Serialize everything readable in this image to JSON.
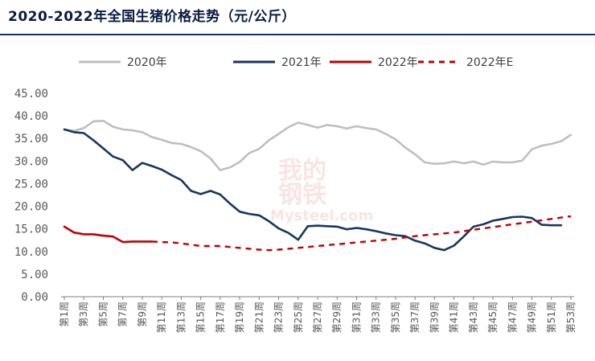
{
  "title": "2020-2022年全国生猪价格走势（元/公斤）",
  "watermark": {
    "top": "我的",
    "middle": "钢铁",
    "bottom": "Mysteel.com"
  },
  "chart_data": {
    "type": "line",
    "title": "2020-2022年全国生猪价格走势（元/公斤）",
    "xlabel": "",
    "ylabel": "",
    "ylim": [
      0,
      45
    ],
    "yticks": [
      "0.00",
      "5.00",
      "10.00",
      "15.00",
      "20.00",
      "25.00",
      "30.00",
      "35.00",
      "40.00",
      "45.00"
    ],
    "x": [
      1,
      2,
      3,
      4,
      5,
      6,
      7,
      8,
      9,
      10,
      11,
      12,
      13,
      14,
      15,
      16,
      17,
      18,
      19,
      20,
      21,
      22,
      23,
      24,
      25,
      26,
      27,
      28,
      29,
      30,
      31,
      32,
      33,
      34,
      35,
      36,
      37,
      38,
      39,
      40,
      41,
      42,
      43,
      44,
      45,
      46,
      47,
      48,
      49,
      50,
      51,
      52,
      53
    ],
    "xtick_labels": [
      "第1周",
      "第3周",
      "第5周",
      "第7周",
      "第9周",
      "第11周",
      "第13周",
      "第15周",
      "第17周",
      "第19周",
      "第21周",
      "第23周",
      "第25周",
      "第27周",
      "第29周",
      "第31周",
      "第33周",
      "第35周",
      "第37周",
      "第39周",
      "第41周",
      "第43周",
      "第45周",
      "第47周",
      "第49周",
      "第51周",
      "第53周"
    ],
    "legend_position": "top",
    "grid": false,
    "series": [
      {
        "name": "2020年",
        "color": "#bfbfbf",
        "dash": "solid",
        "values": [
          37.0,
          36.7,
          37.3,
          38.8,
          38.9,
          37.6,
          37.0,
          36.8,
          36.4,
          35.3,
          34.7,
          34.0,
          33.8,
          33.1,
          32.2,
          30.6,
          28.0,
          28.6,
          29.8,
          31.8,
          32.7,
          34.6,
          36.0,
          37.5,
          38.5,
          38.0,
          37.4,
          38.0,
          37.7,
          37.2,
          37.7,
          37.3,
          37.0,
          36.0,
          34.8,
          33.0,
          31.5,
          29.7,
          29.4,
          29.5,
          29.9,
          29.5,
          29.9,
          29.2,
          29.9,
          29.7,
          29.7,
          30.1,
          32.6,
          33.4,
          33.8,
          34.4,
          35.8
        ]
      },
      {
        "name": "2021年",
        "color": "#17375e",
        "dash": "solid",
        "values": [
          37.0,
          36.4,
          36.2,
          34.6,
          32.8,
          31.0,
          30.2,
          28.0,
          29.6,
          28.9,
          28.1,
          26.9,
          25.8,
          23.4,
          22.7,
          23.4,
          22.6,
          20.6,
          18.8,
          18.3,
          18.0,
          16.7,
          15.1,
          14.1,
          12.6,
          15.6,
          15.7,
          15.6,
          15.5,
          14.9,
          15.2,
          14.9,
          14.5,
          14.0,
          13.6,
          13.4,
          12.4,
          11.8,
          10.8,
          10.3,
          11.3,
          13.3,
          15.5,
          16.0,
          16.8,
          17.2,
          17.6,
          17.7,
          17.4,
          15.9,
          15.8,
          15.8,
          null
        ]
      },
      {
        "name": "2022年",
        "color": "#c00000",
        "dash": "solid",
        "values": [
          15.5,
          14.2,
          13.8,
          13.8,
          13.5,
          13.3,
          12.1,
          12.2,
          12.2,
          12.2,
          null,
          null,
          null,
          null,
          null,
          null,
          null,
          null,
          null,
          null,
          null,
          null,
          null,
          null,
          null,
          null,
          null,
          null,
          null,
          null,
          null,
          null,
          null,
          null,
          null,
          null,
          null,
          null,
          null,
          null,
          null,
          null,
          null,
          null,
          null,
          null,
          null,
          null,
          null,
          null,
          null,
          null,
          null
        ]
      },
      {
        "name": "2022年E",
        "color": "#c00000",
        "dash": "dashed",
        "values": [
          null,
          null,
          null,
          null,
          null,
          null,
          null,
          null,
          null,
          12.2,
          12.1,
          12.0,
          11.8,
          11.5,
          11.2,
          11.2,
          11.2,
          11.0,
          10.8,
          10.6,
          10.4,
          10.3,
          10.4,
          10.6,
          10.8,
          11.0,
          11.2,
          11.4,
          11.6,
          11.8,
          12.0,
          12.2,
          12.4,
          12.6,
          12.8,
          13.1,
          13.4,
          13.6,
          13.8,
          14.0,
          14.2,
          14.5,
          14.8,
          15.1,
          15.4,
          15.7,
          16.0,
          16.3,
          16.6,
          16.9,
          17.2,
          17.5,
          17.8
        ]
      }
    ]
  }
}
